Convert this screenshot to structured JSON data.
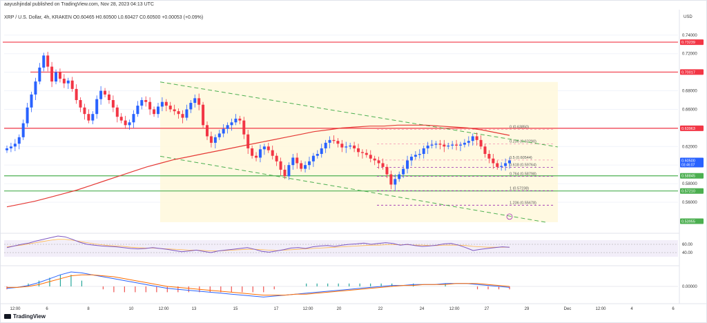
{
  "header": {
    "published": "aayushjindal published on TradingView.com, Nov 28, 2023 04:13 UTC",
    "symbol_line": "XRP / U.S. Dollar, 4h, KRAKEN   O0.60465  H0.60500  L0.60427  C0.60500  +0.00053 (+0.09%)"
  },
  "footer": {
    "brand": "TradingView"
  },
  "chart_data": {
    "type": "candlestick",
    "currency_label": "USD",
    "x_ticks": [
      "12:00",
      "6",
      "8",
      "10",
      "12:00",
      "13",
      "15",
      "17",
      "12:00",
      "20",
      "22",
      "24",
      "12:00",
      "27",
      "29",
      "Dec",
      "12:00",
      "4",
      "6"
    ],
    "price_ticks": [
      "0.74000",
      "0.72000",
      "0.70000",
      "0.68000",
      "0.66000",
      "0.64000",
      "0.62000",
      "0.60000",
      "0.58000",
      "0.56000"
    ],
    "price_range": [
      0.531,
      0.754
    ],
    "price_badges": [
      {
        "value": 0.73239,
        "label": "0.73239",
        "color": "#f23645"
      },
      {
        "value": 0.70017,
        "label": "0.70017",
        "color": "#f23645"
      },
      {
        "value": 0.63963,
        "label": "0.63963",
        "color": "#f23645"
      },
      {
        "value": 0.605,
        "label": "0.60500",
        "sub": "03:46:07",
        "color": "#2962ff"
      },
      {
        "value": 0.58845,
        "label": "0.58845",
        "color": "#4caf50"
      },
      {
        "value": 0.5721,
        "label": "0.57210",
        "color": "#4caf50"
      },
      {
        "value": 0.53955,
        "label": "0.53955",
        "color": "#4caf50"
      }
    ],
    "horizontal_lines": [
      {
        "value": 0.73239,
        "color": "#f23645"
      },
      {
        "value": 0.70017,
        "color": "#f23645"
      },
      {
        "value": 0.63963,
        "color": "#f23645"
      },
      {
        "value": 0.58845,
        "color": "#4caf50"
      },
      {
        "value": 0.5721,
        "color": "#4caf50"
      }
    ],
    "fibonacci": [
      {
        "label": "0 (0.63850)",
        "value": 0.6385
      },
      {
        "label": "0.236 (0.62290)",
        "value": 0.6229
      },
      {
        "label": "0.5 (0.60544)",
        "value": 0.60544
      },
      {
        "label": "0.618 (0.59764)",
        "value": 0.59764
      },
      {
        "label": "0.764 (0.58798)",
        "value": 0.58798
      },
      {
        "label": "1 (0.57238)",
        "value": 0.57238
      },
      {
        "label": "1.236 (0.55678)",
        "value": 0.55678
      }
    ],
    "channel": {
      "upper": [
        [
          0.6895,
          0.6195
        ]
      ],
      "lower": [
        [
          0.6095,
          0.5385
        ]
      ]
    },
    "close_series": [
      0.618,
      0.62,
      0.623,
      0.63,
      0.645,
      0.662,
      0.676,
      0.69,
      0.705,
      0.718,
      0.706,
      0.69,
      0.7,
      0.693,
      0.688,
      0.691,
      0.682,
      0.67,
      0.662,
      0.655,
      0.648,
      0.655,
      0.671,
      0.68,
      0.676,
      0.67,
      0.662,
      0.652,
      0.648,
      0.643,
      0.646,
      0.655,
      0.664,
      0.67,
      0.668,
      0.66,
      0.655,
      0.663,
      0.668,
      0.664,
      0.66,
      0.658,
      0.655,
      0.651,
      0.66,
      0.667,
      0.672,
      0.665,
      0.643,
      0.631,
      0.624,
      0.63,
      0.634,
      0.639,
      0.643,
      0.646,
      0.65,
      0.648,
      0.633,
      0.618,
      0.61,
      0.608,
      0.617,
      0.62,
      0.616,
      0.61,
      0.604,
      0.595,
      0.588,
      0.6,
      0.608,
      0.602,
      0.596,
      0.6,
      0.604,
      0.61,
      0.612,
      0.618,
      0.624,
      0.627,
      0.626,
      0.623,
      0.619,
      0.62,
      0.621,
      0.618,
      0.614,
      0.613,
      0.611,
      0.607,
      0.605,
      0.602,
      0.598,
      0.59,
      0.579,
      0.585,
      0.59,
      0.596,
      0.605,
      0.609,
      0.611,
      0.612,
      0.618,
      0.621,
      0.622,
      0.623,
      0.622,
      0.62,
      0.621,
      0.622,
      0.621,
      0.622,
      0.624,
      0.626,
      0.631,
      0.627,
      0.62,
      0.612,
      0.607,
      0.602,
      0.598,
      0.599,
      0.602,
      0.605
    ],
    "ma_series": [
      0.555,
      0.558,
      0.561,
      0.565,
      0.569,
      0.573,
      0.578,
      0.583,
      0.588,
      0.593,
      0.598,
      0.602,
      0.606,
      0.609,
      0.612,
      0.615,
      0.618,
      0.621,
      0.624,
      0.627,
      0.63,
      0.633,
      0.636,
      0.638,
      0.64,
      0.641,
      0.642,
      0.642,
      0.643,
      0.643,
      0.643,
      0.642,
      0.641,
      0.64,
      0.638,
      0.635,
      0.632
    ],
    "rsi": {
      "levels": [
        40,
        60
      ],
      "ticks": [
        "60.00",
        "40.00"
      ],
      "values": [
        52,
        56,
        60,
        63,
        68,
        72,
        76,
        80,
        78,
        72,
        65,
        60,
        58,
        56,
        55,
        54,
        52,
        50,
        49,
        50,
        52,
        50,
        48,
        45,
        42,
        44,
        46,
        43,
        40,
        44,
        46,
        48,
        50,
        52,
        48,
        43,
        41,
        44,
        47,
        51,
        52,
        50,
        54,
        56,
        57,
        55,
        58,
        60,
        61,
        63,
        60,
        62,
        64,
        62,
        58,
        60,
        57,
        55,
        56,
        58,
        61,
        62,
        58,
        52,
        45,
        48,
        50,
        52,
        54,
        53
      ],
      "signal": [
        54,
        56,
        58,
        61,
        64,
        67,
        70,
        72,
        72,
        70,
        67,
        64,
        61,
        59,
        57,
        56,
        55,
        53,
        52,
        51,
        51,
        50,
        49,
        48,
        47,
        46,
        46,
        45,
        44,
        44,
        45,
        46,
        47,
        48,
        48,
        47,
        46,
        45,
        46,
        47,
        48,
        49,
        50,
        51,
        52,
        53,
        54,
        55,
        56,
        57,
        58,
        58,
        59,
        59,
        59,
        59,
        58,
        58,
        57,
        57,
        58,
        58,
        58,
        57,
        55,
        54,
        53,
        53,
        53,
        53
      ]
    },
    "macd": {
      "ticks": [
        "0.00000"
      ],
      "macd": [
        -0.002,
        -0.001,
        0.001,
        0.004,
        0.008,
        0.012,
        0.015,
        0.014,
        0.012,
        0.01,
        0.008,
        0.006,
        0.004,
        0.002,
        0.0,
        -0.002,
        -0.003,
        -0.004,
        -0.005,
        -0.006,
        -0.007,
        -0.008,
        -0.009,
        -0.01,
        -0.011,
        -0.01,
        -0.009,
        -0.008,
        -0.007,
        -0.006,
        -0.005,
        -0.004,
        -0.003,
        -0.002,
        -0.001,
        0.0,
        0.001,
        0.001,
        0.002,
        0.002,
        0.002,
        0.003,
        0.003,
        0.003,
        0.002,
        0.001,
        0.0,
        -0.001
      ],
      "signal": [
        -0.001,
        -0.001,
        0.0,
        0.002,
        0.005,
        0.008,
        0.011,
        0.012,
        0.012,
        0.011,
        0.01,
        0.008,
        0.006,
        0.004,
        0.002,
        0.0,
        -0.001,
        -0.002,
        -0.003,
        -0.004,
        -0.005,
        -0.006,
        -0.007,
        -0.008,
        -0.009,
        -0.009,
        -0.009,
        -0.008,
        -0.008,
        -0.007,
        -0.006,
        -0.005,
        -0.004,
        -0.003,
        -0.002,
        -0.001,
        0.0,
        0.001,
        0.001,
        0.002,
        0.002,
        0.002,
        0.003,
        0.003,
        0.003,
        0.002,
        0.001,
        0.0
      ]
    }
  }
}
